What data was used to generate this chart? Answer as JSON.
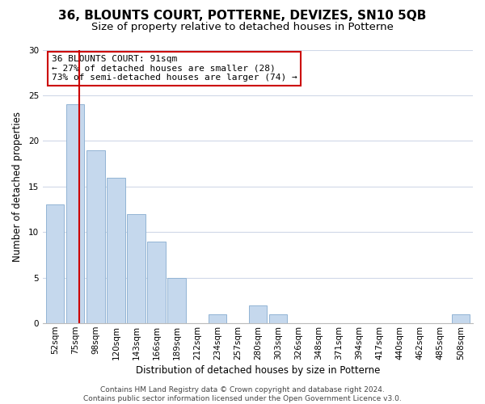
{
  "title": "36, BLOUNTS COURT, POTTERNE, DEVIZES, SN10 5QB",
  "subtitle": "Size of property relative to detached houses in Potterne",
  "xlabel": "Distribution of detached houses by size in Potterne",
  "ylabel": "Number of detached properties",
  "bar_labels": [
    "52sqm",
    "75sqm",
    "98sqm",
    "120sqm",
    "143sqm",
    "166sqm",
    "189sqm",
    "212sqm",
    "234sqm",
    "257sqm",
    "280sqm",
    "303sqm",
    "326sqm",
    "348sqm",
    "371sqm",
    "394sqm",
    "417sqm",
    "440sqm",
    "462sqm",
    "485sqm",
    "508sqm"
  ],
  "bar_values": [
    13,
    24,
    19,
    16,
    12,
    9,
    5,
    0,
    1,
    0,
    2,
    1,
    0,
    0,
    0,
    0,
    0,
    0,
    0,
    0,
    1
  ],
  "bar_color": "#c5d8ed",
  "bar_edge_color": "#92b4d4",
  "highlight_color": "#cc0000",
  "annotation_title": "36 BLOUNTS COURT: 91sqm",
  "annotation_line1": "← 27% of detached houses are smaller (28)",
  "annotation_line2": "73% of semi-detached houses are larger (74) →",
  "annotation_box_color": "#ffffff",
  "annotation_box_edge": "#cc0000",
  "ylim": [
    0,
    30
  ],
  "yticks": [
    0,
    5,
    10,
    15,
    20,
    25,
    30
  ],
  "footer1": "Contains HM Land Registry data © Crown copyright and database right 2024.",
  "footer2": "Contains public sector information licensed under the Open Government Licence v3.0.",
  "bg_color": "#ffffff",
  "grid_color": "#d0d8e8",
  "title_fontsize": 11,
  "subtitle_fontsize": 9.5,
  "axis_label_fontsize": 8.5,
  "tick_fontsize": 7.5,
  "annotation_fontsize": 8,
  "footer_fontsize": 6.5
}
